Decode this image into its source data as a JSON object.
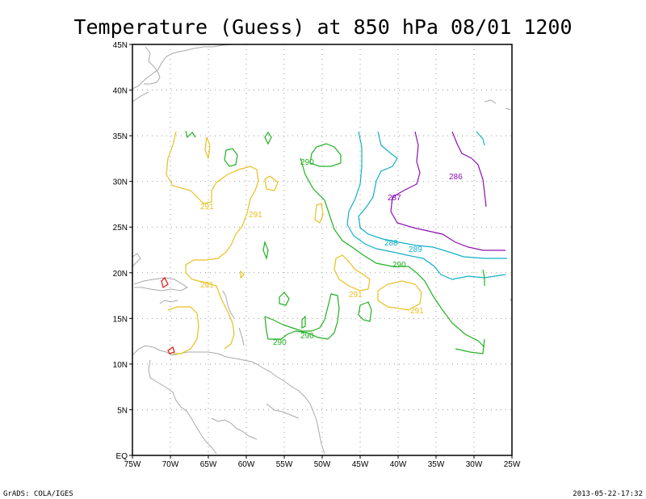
{
  "title": "Temperature (Guess) at 850 hPa 08/01 1200",
  "footer_left": "GrADS: COLA/IGES",
  "footer_right": "2013-05-22-17:32",
  "lon_ticks": [
    "75W",
    "70W",
    "65W",
    "60W",
    "55W",
    "50W",
    "45W",
    "40W",
    "35W",
    "30W",
    "25W"
  ],
  "lat_ticks": [
    "EQ",
    "5N",
    "10N",
    "15N",
    "20N",
    "25N",
    "30N",
    "35N",
    "40N",
    "45N"
  ],
  "contour_labels": [
    {
      "text": "290",
      "color": "#22b022"
    },
    {
      "text": "291",
      "color": "#e8c020"
    },
    {
      "text": "291",
      "color": "#e8c020"
    },
    {
      "text": "287",
      "color": "#8a10b0"
    },
    {
      "text": "286",
      "color": "#8a10b0"
    },
    {
      "text": "288",
      "color": "#10b0c8"
    },
    {
      "text": "289",
      "color": "#10b0c8"
    },
    {
      "text": "290",
      "color": "#22b022"
    },
    {
      "text": "291",
      "color": "#e8c020"
    },
    {
      "text": "291",
      "color": "#e8c020"
    },
    {
      "text": "291",
      "color": "#e8c020"
    },
    {
      "text": "290",
      "color": "#22b022"
    },
    {
      "text": "290",
      "color": "#22b022"
    }
  ],
  "colors": {
    "c286_287": "#8a10b0",
    "c288_289": "#10b0c8",
    "c290": "#22b022",
    "c291": "#e8c020",
    "c292": "#e02020",
    "coastline": "#a9a9a9",
    "grid": "#999999"
  }
}
